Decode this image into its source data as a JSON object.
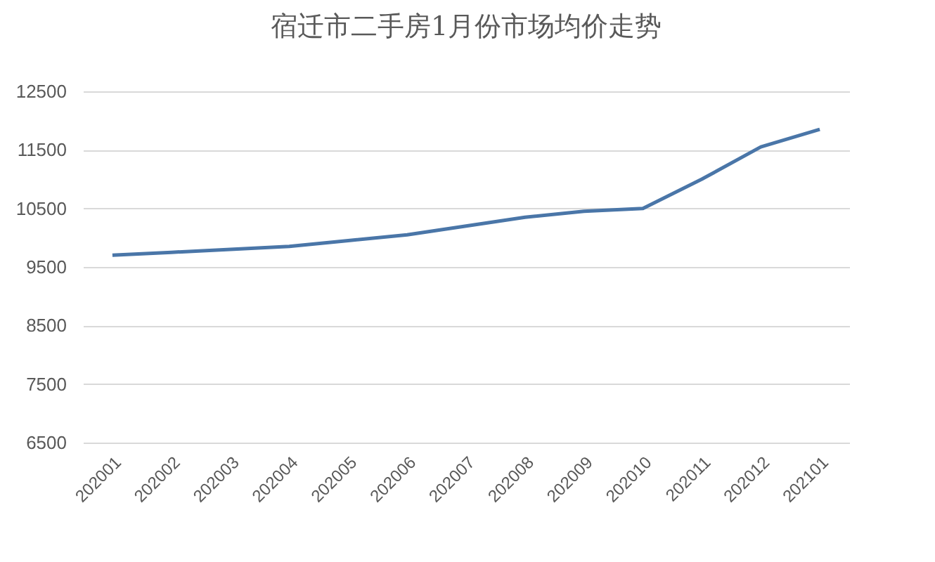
{
  "chart_data": {
    "type": "line",
    "title": "宿迁市二手房1月份市场均价走势",
    "categories": [
      "202001",
      "202002",
      "202003",
      "202004",
      "202005",
      "202006",
      "202007",
      "202008",
      "202009",
      "202010",
      "202011",
      "202012",
      "202101"
    ],
    "series": [
      {
        "color": "#4a76a8",
        "values": [
          9700,
          9750,
          9800,
          9850,
          9950,
          10050,
          10200,
          10350,
          10450,
          10500,
          11000,
          11550,
          11850
        ]
      }
    ],
    "ylim": [
      6500,
      12500
    ],
    "yticks": [
      6500,
      7500,
      8500,
      9500,
      10500,
      11500,
      12500
    ],
    "grid": "y",
    "legend": false,
    "marker": "none",
    "line_style": "solid"
  }
}
